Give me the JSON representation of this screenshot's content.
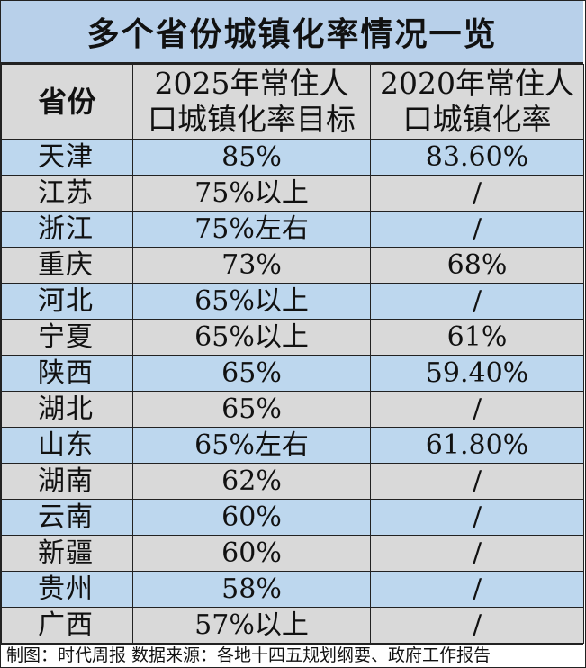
{
  "title": "多个省份城镇化率情况一览",
  "headers": {
    "col1": "省份",
    "col2_line1": "2025年常住人",
    "col2_line2": "口城镇化率目标",
    "col3_line1": "2020年常住人",
    "col3_line2": "口城镇化率"
  },
  "rows": [
    {
      "province": "天津",
      "target_2025": "85%",
      "rate_2020": "83.60%"
    },
    {
      "province": "江苏",
      "target_2025": "75%以上",
      "rate_2020": "/"
    },
    {
      "province": "浙江",
      "target_2025": "75%左右",
      "rate_2020": "/"
    },
    {
      "province": "重庆",
      "target_2025": "73%",
      "rate_2020": "68%"
    },
    {
      "province": "河北",
      "target_2025": "65%以上",
      "rate_2020": "/"
    },
    {
      "province": "宁夏",
      "target_2025": "65%以上",
      "rate_2020": "61%"
    },
    {
      "province": "陕西",
      "target_2025": "65%",
      "rate_2020": "59.40%"
    },
    {
      "province": "湖北",
      "target_2025": "65%",
      "rate_2020": "/"
    },
    {
      "province": "山东",
      "target_2025": "65%左右",
      "rate_2020": "61.80%"
    },
    {
      "province": "湖南",
      "target_2025": "62%",
      "rate_2020": "/"
    },
    {
      "province": "云南",
      "target_2025": "60%",
      "rate_2020": "/"
    },
    {
      "province": "新疆",
      "target_2025": "60%",
      "rate_2020": "/"
    },
    {
      "province": "贵州",
      "target_2025": "58%",
      "rate_2020": "/"
    },
    {
      "province": "广西",
      "target_2025": "57%以上",
      "rate_2020": "/"
    }
  ],
  "footer": "制图：时代周报  数据来源：各地十四五规划纲要、政府工作报告",
  "colors": {
    "title_bg": "#b8d0ea",
    "header_bg": "#d9d9d9",
    "row_blue": "#bdd7ee",
    "row_gray": "#d9d9d9",
    "border": "#222222"
  }
}
